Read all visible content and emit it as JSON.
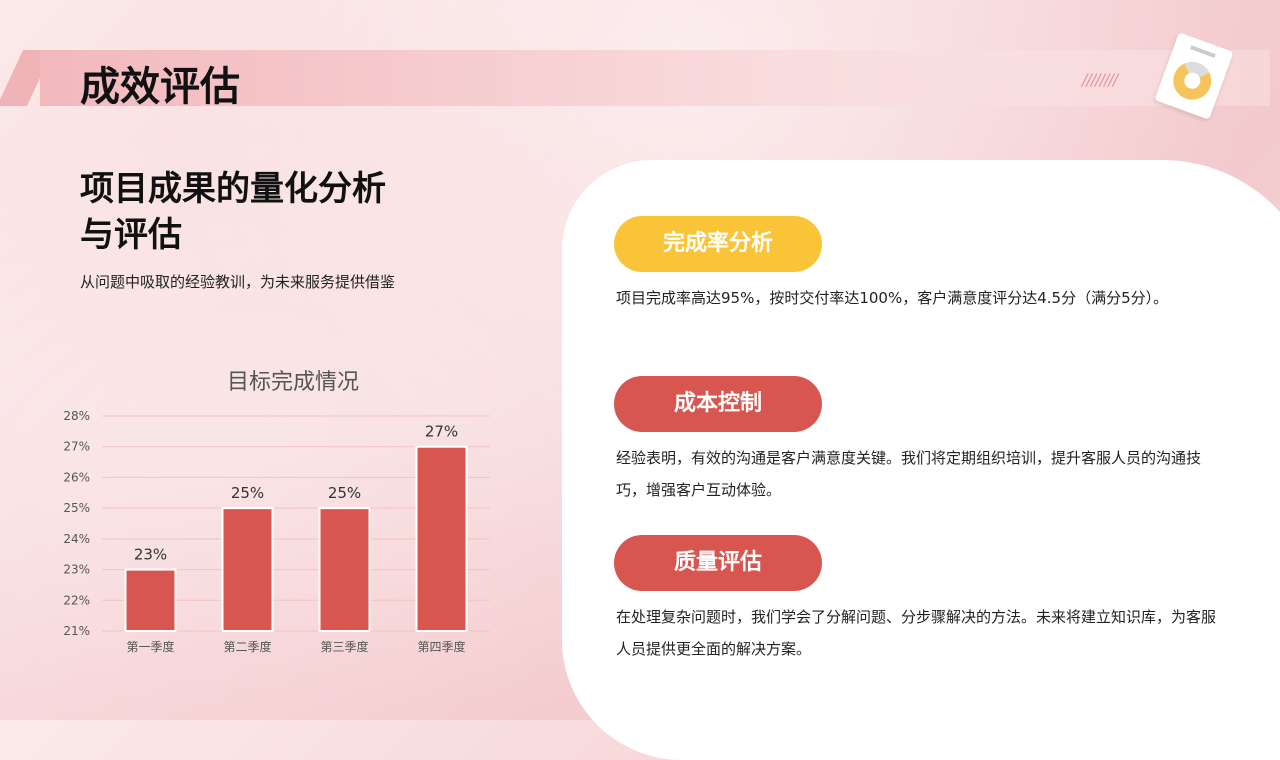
{
  "header": {
    "title": "成效评估"
  },
  "left": {
    "heading": "项目成果的量化分析与评估",
    "subtitle": "从问题中吸取的经验教训，为未来服务提供借鉴"
  },
  "colors": {
    "bar": "#d85650",
    "pill_yellow": "#f9c437",
    "pill_red": "#d85650"
  },
  "icons": [
    "hatch-decoration",
    "document-donut-chart-icon"
  ],
  "chart_data": {
    "type": "bar",
    "title": "目标完成情况",
    "categories": [
      "第一季度",
      "第二季度",
      "第三季度",
      "第四季度"
    ],
    "values": [
      23,
      25,
      25,
      27
    ],
    "data_labels": [
      "23%",
      "25%",
      "25%",
      "27%"
    ],
    "ylim": [
      21,
      28
    ],
    "yticks": [
      "21%",
      "22%",
      "23%",
      "24%",
      "25%",
      "26%",
      "27%",
      "28%"
    ],
    "grid": true,
    "xlabel": "",
    "ylabel": ""
  },
  "sections": [
    {
      "label": "完成率分析",
      "text": "项目完成率高达95%，按时交付率达100%，客户满意度评分达4.5分（满分5分）。"
    },
    {
      "label": "成本控制",
      "text": "经验表明，有效的沟通是客户满意度关键。我们将定期组织培训，提升客服人员的沟通技巧，增强客户互动体验。"
    },
    {
      "label": "质量评估",
      "text": "在处理复杂问题时，我们学会了分解问题、分步骤解决的方法。未来将建立知识库，为客服人员提供更全面的解决方案。"
    }
  ]
}
